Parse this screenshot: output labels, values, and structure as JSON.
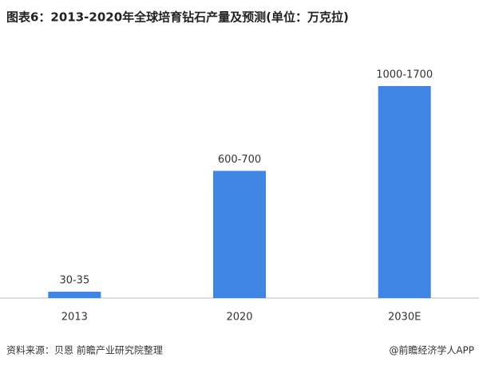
{
  "chart_data": {
    "type": "bar",
    "title": "图表6：2013-2020年全球培育钻石产量及预测(单位：万克拉)",
    "categories": [
      "2013",
      "2020",
      "2030E"
    ],
    "values": [
      30,
      600,
      1000
    ],
    "value_labels": [
      "30-35",
      "600-700",
      "1000-1700"
    ],
    "color": "#3e85e4",
    "ylim": [
      0,
      1000
    ],
    "grid": false,
    "source": "资料来源：贝恩 前瞻产业研究院整理",
    "credit": "@前瞻经济学人APP"
  }
}
